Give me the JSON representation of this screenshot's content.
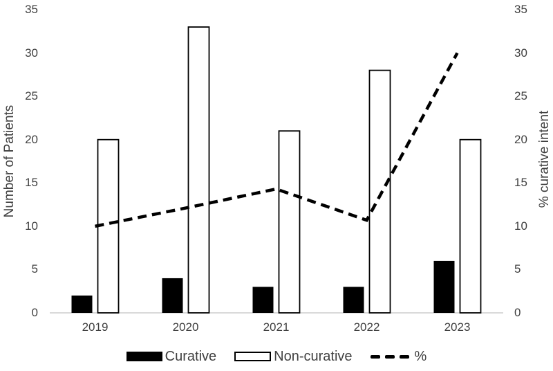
{
  "chart_data": {
    "type": "bar",
    "subtype": "combo-bar-line-dual-axis",
    "categories": [
      "2019",
      "2020",
      "2021",
      "2022",
      "2023"
    ],
    "series": [
      {
        "name": "Curative",
        "type": "bar",
        "axis": "left",
        "values": [
          2,
          4,
          3,
          3,
          6
        ],
        "fill": "#000000",
        "stroke": "#000000"
      },
      {
        "name": "Non-curative",
        "type": "bar",
        "axis": "left",
        "values": [
          20,
          33,
          21,
          28,
          20
        ],
        "fill": "#ffffff",
        "stroke": "#000000"
      },
      {
        "name": "%",
        "type": "line",
        "axis": "right",
        "values": [
          10,
          12.1,
          14.3,
          10.7,
          30
        ],
        "color": "#000000",
        "dashed": true
      }
    ],
    "left_axis": {
      "label": "Number of Patients",
      "min": 0,
      "max": 35,
      "ticks": [
        0,
        5,
        10,
        15,
        20,
        25,
        30,
        35
      ]
    },
    "right_axis": {
      "label": "% curative intent",
      "min": 0,
      "max": 35,
      "ticks": [
        0,
        5,
        10,
        15,
        20,
        25,
        30,
        35
      ]
    },
    "x_axis": {
      "tick_labels": [
        "2019",
        "2020",
        "2021",
        "2022",
        "2023"
      ]
    },
    "grid": false,
    "title": "",
    "legend": {
      "position": "bottom",
      "entries": [
        {
          "label": "Curative",
          "swatch": "filled-bar"
        },
        {
          "label": "Non-curative",
          "swatch": "outlined-bar"
        },
        {
          "label": "%",
          "swatch": "dashed-line"
        }
      ]
    }
  },
  "colors": {
    "background": "#ffffff",
    "text": "#3f3f3f",
    "axis_line": "#d9d9d9",
    "bar_filled": "#000000",
    "bar_outlined_fill": "#ffffff",
    "bar_outlined_stroke": "#000000",
    "line": "#000000"
  }
}
